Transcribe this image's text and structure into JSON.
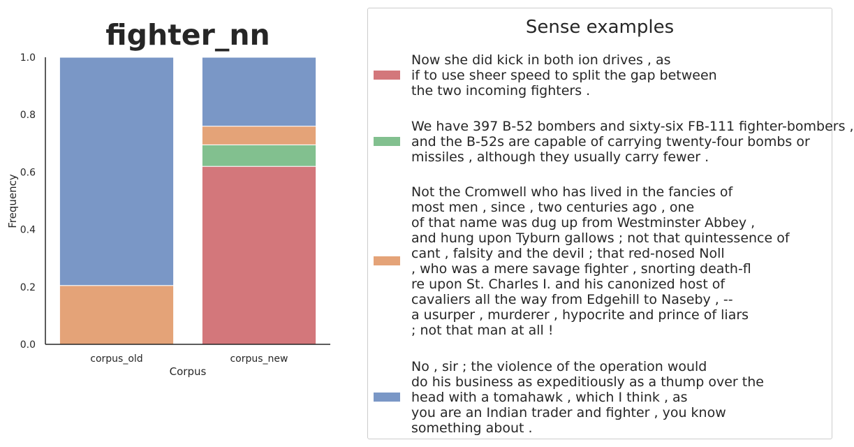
{
  "chart_data": {
    "type": "bar",
    "stacked": true,
    "title": "fighter_nn",
    "xlabel": "Corpus",
    "ylabel": "Frequency",
    "ylim": [
      0,
      1.0
    ],
    "yticks": [
      "0.0",
      "0.2",
      "0.4",
      "0.6",
      "0.8",
      "1.0"
    ],
    "grid": false,
    "categories": [
      "corpus_old",
      "corpus_new"
    ],
    "series": [
      {
        "color": "#d3777b",
        "values": [
          0.0,
          0.62
        ]
      },
      {
        "color": "#82c08f",
        "values": [
          0.0,
          0.075
        ]
      },
      {
        "color": "#e4a378",
        "values": [
          0.205,
          0.065
        ]
      },
      {
        "color": "#7a97c6",
        "values": [
          0.795,
          0.24
        ]
      }
    ],
    "legend": {
      "title": "Sense examples",
      "placement": "right",
      "entries": [
        {
          "color": "#d3777b",
          "lines": [
            "Now she did kick in both ion drives , as",
            "if to use sheer speed to split the gap between",
            "the two incoming fighters ."
          ]
        },
        {
          "color": "#82c08f",
          "lines": [
            "We have 397 B-52 bombers and sixty-six FB-111 fighter-bombers ,",
            "and the B-52s are capable of carrying twenty-four bombs or",
            "missiles , although they usually carry fewer ."
          ]
        },
        {
          "color": "#e4a378",
          "lines": [
            "Not the Cromwell who has lived in the fancies of",
            "most men , since , two centuries ago , one",
            "of that name was dug up from Westminster Abbey ,",
            "and hung upon Tyburn gallows ; not that quintessence of",
            "cant , falsity and the devil ; that red-nosed Noll",
            ", who was a mere savage fighter , snorting death-fl",
            "re upon St. Charles I. and his canonized host of",
            "cavaliers all the way from Edgehill to Naseby , --",
            "a usurper , murderer , hypocrite and prince of liars",
            "; not that man at all !"
          ]
        },
        {
          "color": "#7a97c6",
          "lines": [
            "No , sir ; the violence of the operation would",
            "do his business as expeditiously as a thump over the",
            "head with a tomahawk , which I think , as",
            "you are an Indian trader and fighter , you know",
            "something about ."
          ]
        }
      ]
    }
  }
}
